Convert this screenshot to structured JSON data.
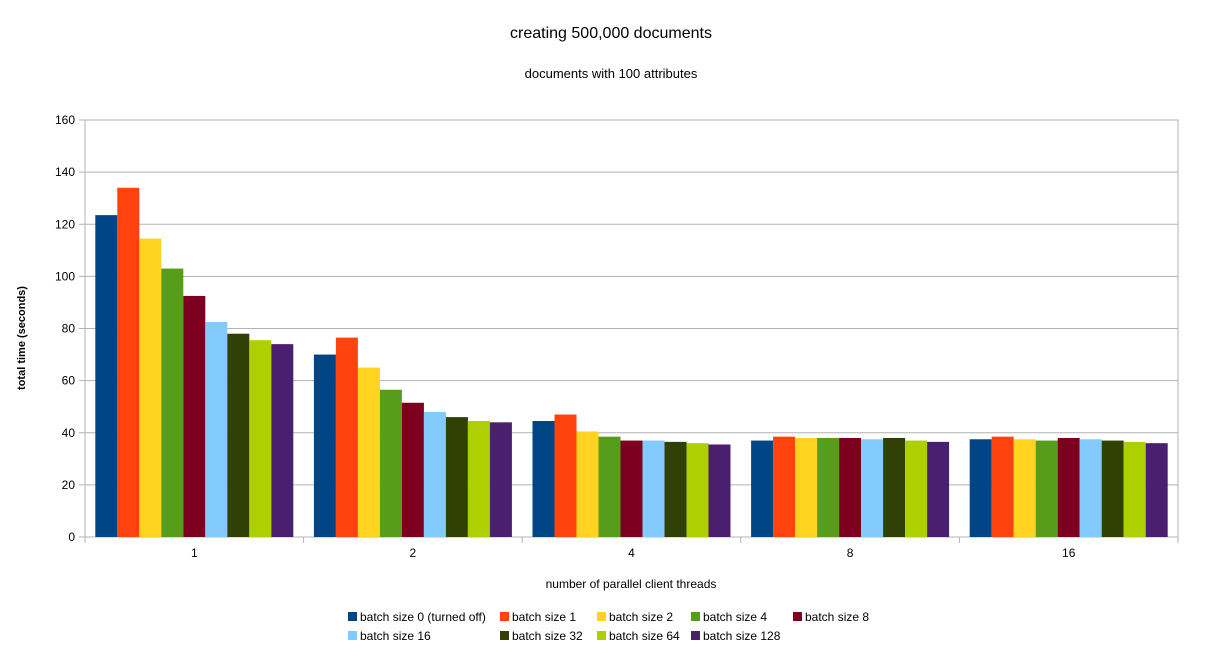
{
  "chart_data": {
    "type": "bar",
    "title": "creating 500,000 documents",
    "subtitle": "documents with 100 attributes",
    "xlabel": "number of parallel client threads",
    "ylabel": "total time (seconds)",
    "ylim": [
      0,
      160
    ],
    "yticks": [
      0,
      20,
      40,
      60,
      80,
      100,
      120,
      140,
      160
    ],
    "grid": true,
    "legend_position": "bottom",
    "categories": [
      "1",
      "2",
      "4",
      "8",
      "16"
    ],
    "series": [
      {
        "name": "batch size 0 (turned off)",
        "color": "#004586",
        "values": [
          123.5,
          70,
          44.5,
          37,
          37.5
        ]
      },
      {
        "name": "batch size 1",
        "color": "#ff420e",
        "values": [
          134,
          76.5,
          47,
          38.5,
          38.5
        ]
      },
      {
        "name": "batch size 2",
        "color": "#ffd320",
        "values": [
          114.5,
          65,
          40.5,
          38,
          37.5
        ]
      },
      {
        "name": "batch size 4",
        "color": "#579d1c",
        "values": [
          103,
          56.5,
          38.5,
          38,
          37
        ]
      },
      {
        "name": "batch size 8",
        "color": "#7e0021",
        "values": [
          92.5,
          51.5,
          37,
          38,
          38
        ]
      },
      {
        "name": "batch size 16",
        "color": "#83caff",
        "values": [
          82.5,
          48,
          37,
          37.5,
          37.5
        ]
      },
      {
        "name": "batch size 32",
        "color": "#314004",
        "values": [
          78,
          46,
          36.5,
          38,
          37
        ]
      },
      {
        "name": "batch size 64",
        "color": "#aecf00",
        "values": [
          75.5,
          44.5,
          36,
          37,
          36.5
        ]
      },
      {
        "name": "batch size 128",
        "color": "#4b1f6f",
        "values": [
          74,
          44,
          35.5,
          36.5,
          36
        ]
      }
    ]
  }
}
